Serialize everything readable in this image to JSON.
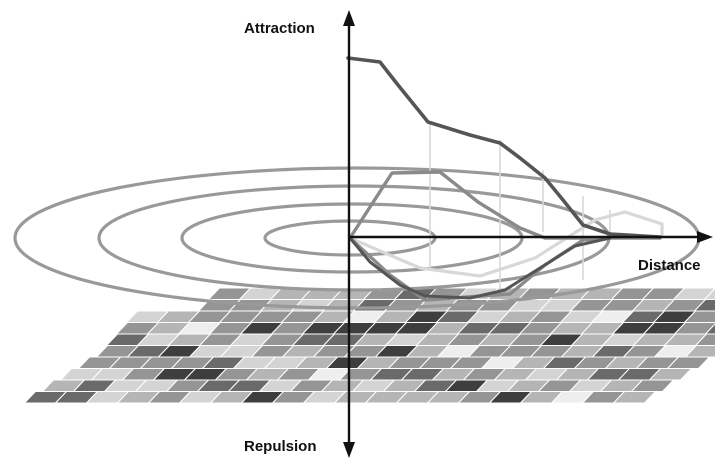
{
  "labels": {
    "attraction": "Attraction",
    "distance": "Distance",
    "repulsion": "Repulsion"
  },
  "colors": {
    "background": "#ffffff",
    "axis": "#111111",
    "dark_curve": "#555555",
    "mid_curve": "#8a8a8a",
    "light_curve": "#d8d8d8",
    "ellipse": "#999999",
    "grid_stroke": "#ffffff",
    "cell_shades": [
      "#eeeeee",
      "#d4d4d4",
      "#b5b5b5",
      "#959595",
      "#6a6a6a",
      "#3e3e3e"
    ]
  }
}
